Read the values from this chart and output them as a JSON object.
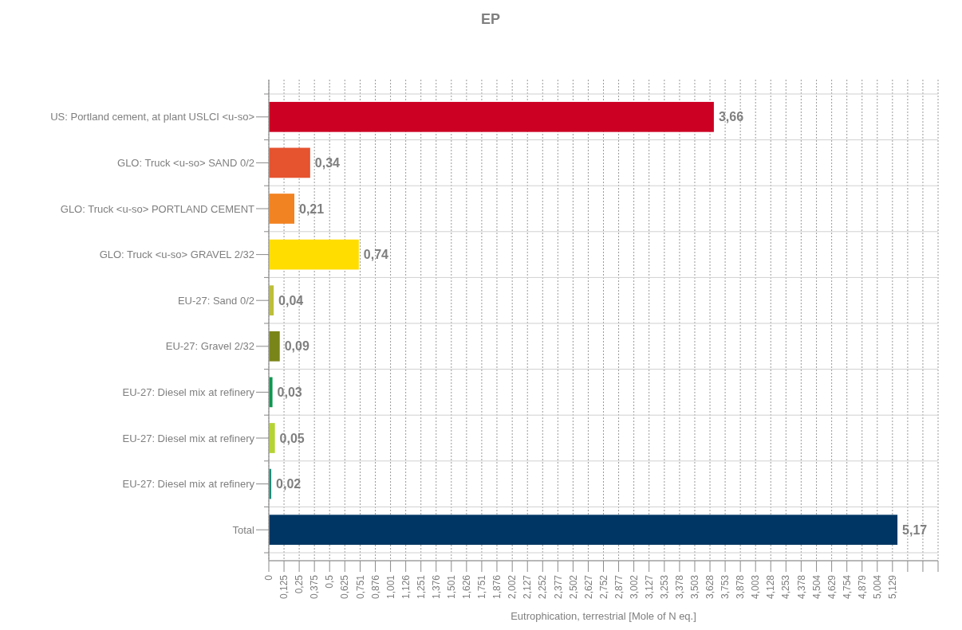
{
  "chart_data": {
    "type": "bar",
    "orientation": "horizontal",
    "title": "EP",
    "xlabel": "Eutrophication, terrestrial [Mole of N eq.]",
    "categories": [
      "US: Portland cement, at plant USLCI <u-so>",
      "GLO: Truck <u-so> SAND 0/2",
      "GLO: Truck <u-so> PORTLAND CEMENT",
      "GLO: Truck <u-so> GRAVEL 2/32",
      "EU-27: Sand 0/2",
      "EU-27: Gravel 2/32",
      "EU-27: Diesel mix at refinery",
      "EU-27: Diesel mix at refinery",
      "EU-27: Diesel mix at refinery",
      "Total"
    ],
    "values": [
      3.66,
      0.34,
      0.21,
      0.74,
      0.04,
      0.09,
      0.03,
      0.05,
      0.02,
      5.17
    ],
    "colors": [
      "#cc0023",
      "#e5532f",
      "#f28322",
      "#ffdd00",
      "#bcbf3a",
      "#7a8519",
      "#0f9650",
      "#b5d334",
      "#1e8c78",
      "#003663"
    ],
    "value_labels": [
      "3,66",
      "0,34",
      "0,21",
      "0,74",
      "0,04",
      "0,09",
      "0,03",
      "0,05",
      "0,02",
      "5,17"
    ],
    "xlim": [
      0,
      5.504
    ],
    "xticks": [
      {
        "value": 0,
        "label": "0"
      },
      {
        "value": 0.125,
        "label": "0,125"
      },
      {
        "value": 0.25,
        "label": "0,25"
      },
      {
        "value": 0.375,
        "label": "0,375"
      },
      {
        "value": 0.5,
        "label": "0,5"
      },
      {
        "value": 0.625,
        "label": "0,625"
      },
      {
        "value": 0.751,
        "label": "0,751"
      },
      {
        "value": 0.876,
        "label": "0,876"
      },
      {
        "value": 1.001,
        "label": "1,001"
      },
      {
        "value": 1.126,
        "label": "1,126"
      },
      {
        "value": 1.251,
        "label": "1,251"
      },
      {
        "value": 1.376,
        "label": "1,376"
      },
      {
        "value": 1.501,
        "label": "1,501"
      },
      {
        "value": 1.626,
        "label": "1,626"
      },
      {
        "value": 1.751,
        "label": "1,751"
      },
      {
        "value": 1.876,
        "label": "1,876"
      },
      {
        "value": 2.002,
        "label": "2,002"
      },
      {
        "value": 2.127,
        "label": "2,127"
      },
      {
        "value": 2.252,
        "label": "2,252"
      },
      {
        "value": 2.377,
        "label": "2,377"
      },
      {
        "value": 2.502,
        "label": "2,502"
      },
      {
        "value": 2.627,
        "label": "2,627"
      },
      {
        "value": 2.752,
        "label": "2,752"
      },
      {
        "value": 2.877,
        "label": "2,877"
      },
      {
        "value": 3.002,
        "label": "3,002"
      },
      {
        "value": 3.127,
        "label": "3,127"
      },
      {
        "value": 3.253,
        "label": "3,253"
      },
      {
        "value": 3.378,
        "label": "3,378"
      },
      {
        "value": 3.503,
        "label": "3,503"
      },
      {
        "value": 3.628,
        "label": "3,628"
      },
      {
        "value": 3.753,
        "label": "3,753"
      },
      {
        "value": 3.878,
        "label": "3,878"
      },
      {
        "value": 4.003,
        "label": "4,003"
      },
      {
        "value": 4.128,
        "label": "4,128"
      },
      {
        "value": 4.253,
        "label": "4,253"
      },
      {
        "value": 4.378,
        "label": "4,378"
      },
      {
        "value": 4.504,
        "label": "4,504"
      },
      {
        "value": 4.629,
        "label": "4,629"
      },
      {
        "value": 4.754,
        "label": "4,754"
      },
      {
        "value": 4.879,
        "label": "4,879"
      },
      {
        "value": 5.004,
        "label": "5,004"
      },
      {
        "value": 5.129,
        "label": "5,129"
      },
      {
        "value": 5.254,
        "label": null
      },
      {
        "value": 5.379,
        "label": null
      },
      {
        "value": 5.504,
        "label": null
      }
    ],
    "grid": true
  }
}
